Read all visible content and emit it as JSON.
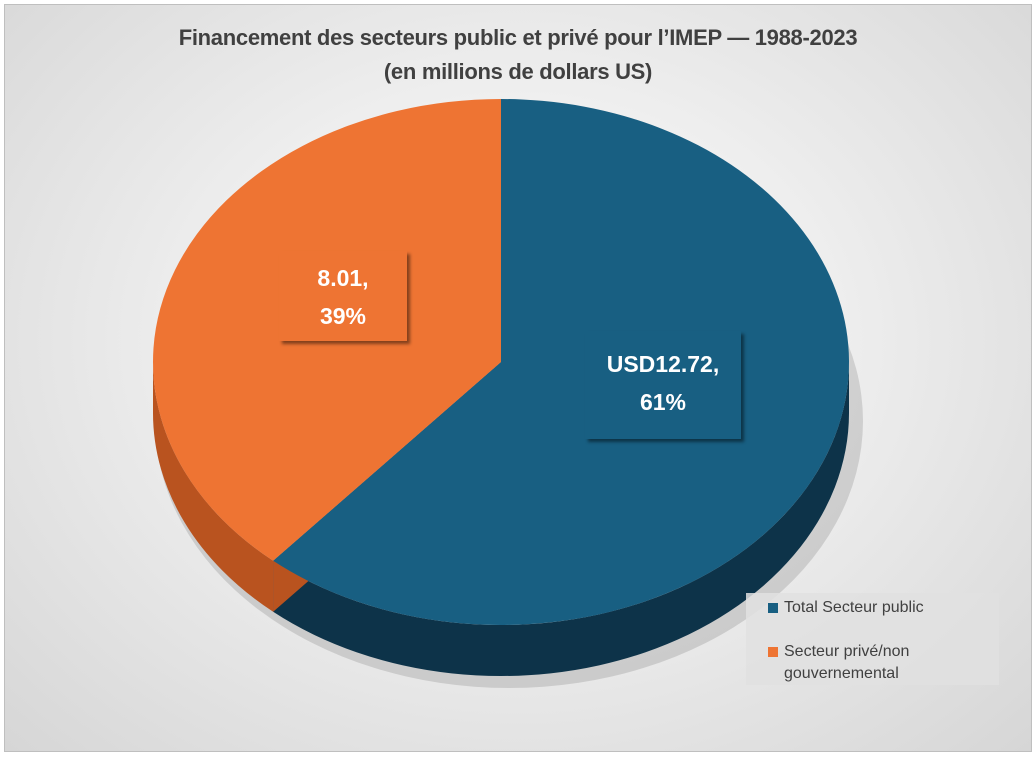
{
  "chart_data": {
    "type": "pie",
    "style": "3d",
    "title": "Financement des secteurs public et privé pour l’IMEP — 1988-2023",
    "subtitle": "(en millions de dollars US)",
    "categories": [
      "Total Secteur public",
      "Secteur privé/non gouvernemental"
    ],
    "values": [
      12.72,
      8.01
    ],
    "percent": [
      61,
      39
    ],
    "data_labels": [
      {
        "line1": "USD12.72,",
        "line2": "61%"
      },
      {
        "line1": "8.01,",
        "line2": "39%"
      }
    ],
    "colors": [
      "#185f82",
      "#ee7433"
    ],
    "side_colors": [
      "#0d3349",
      "#b9531f"
    ],
    "legend_position": "bottom-right"
  }
}
